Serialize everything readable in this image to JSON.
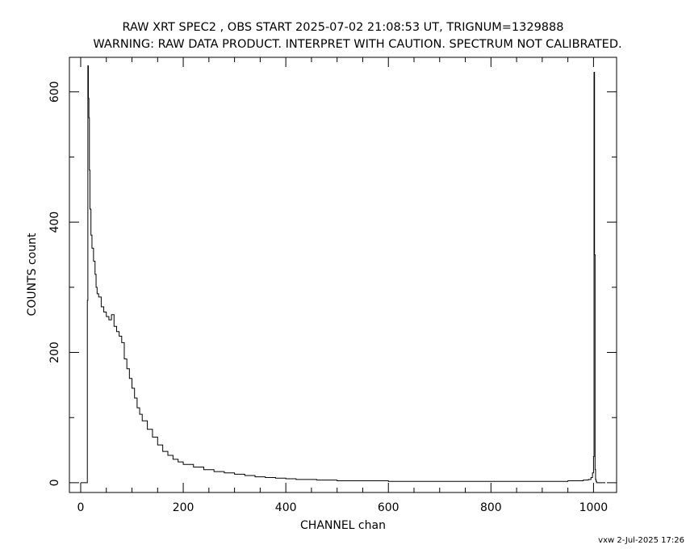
{
  "chart_data": {
    "type": "line",
    "title": "RAW XRT SPEC2 , OBS START 2025-07-02 21:08:53 UT, TRIGNUM=1329888",
    "subtitle": "WARNING: RAW DATA PRODUCT. INTERPRET WITH CAUTION. SPECTRUM NOT CALIBRATED.",
    "xlabel": "CHANNEL  chan",
    "ylabel": "COUNTS  count",
    "xlim": [
      -22,
      1045
    ],
    "ylim": [
      -15,
      653
    ],
    "xticks": [
      0,
      200,
      400,
      600,
      800,
      1000
    ],
    "yticks": [
      0,
      200,
      400,
      600
    ],
    "xtick_labels": [
      "0",
      "200",
      "400",
      "600",
      "800",
      "1000"
    ],
    "ytick_labels": [
      "0",
      "200",
      "400",
      "600"
    ],
    "grid": false,
    "step": true,
    "footer": "vxw  2-Jul-2025 17:26",
    "series": [
      {
        "x": [
          0,
          12,
          13,
          14,
          15,
          16,
          17,
          18,
          20,
          22,
          25,
          28,
          30,
          32,
          35,
          40,
          45,
          50,
          55,
          60,
          65,
          70,
          75,
          80,
          85,
          90,
          95,
          100,
          105,
          110,
          115,
          120,
          130,
          140,
          150,
          160,
          170,
          180,
          190,
          200,
          220,
          240,
          260,
          280,
          300,
          320,
          340,
          360,
          380,
          400,
          420,
          440,
          460,
          480,
          500,
          550,
          600,
          650,
          700,
          750,
          800,
          850,
          900,
          950,
          980,
          990,
          995,
          998,
          1000,
          1001,
          1002,
          1003,
          1004,
          1005,
          1006,
          1010,
          1023
        ],
        "y": [
          0,
          0,
          280,
          640,
          590,
          560,
          480,
          420,
          380,
          360,
          340,
          320,
          300,
          290,
          285,
          270,
          262,
          255,
          250,
          258,
          240,
          232,
          225,
          215,
          190,
          175,
          160,
          145,
          130,
          115,
          105,
          95,
          82,
          70,
          58,
          48,
          42,
          36,
          32,
          28,
          24,
          20,
          17,
          15,
          13,
          11,
          9,
          8,
          7,
          6,
          5,
          5,
          4,
          4,
          3,
          3,
          2,
          2,
          2,
          2,
          2,
          2,
          2,
          3,
          4,
          5,
          8,
          15,
          40,
          630,
          350,
          20,
          5,
          2,
          0,
          0,
          0
        ]
      }
    ]
  }
}
